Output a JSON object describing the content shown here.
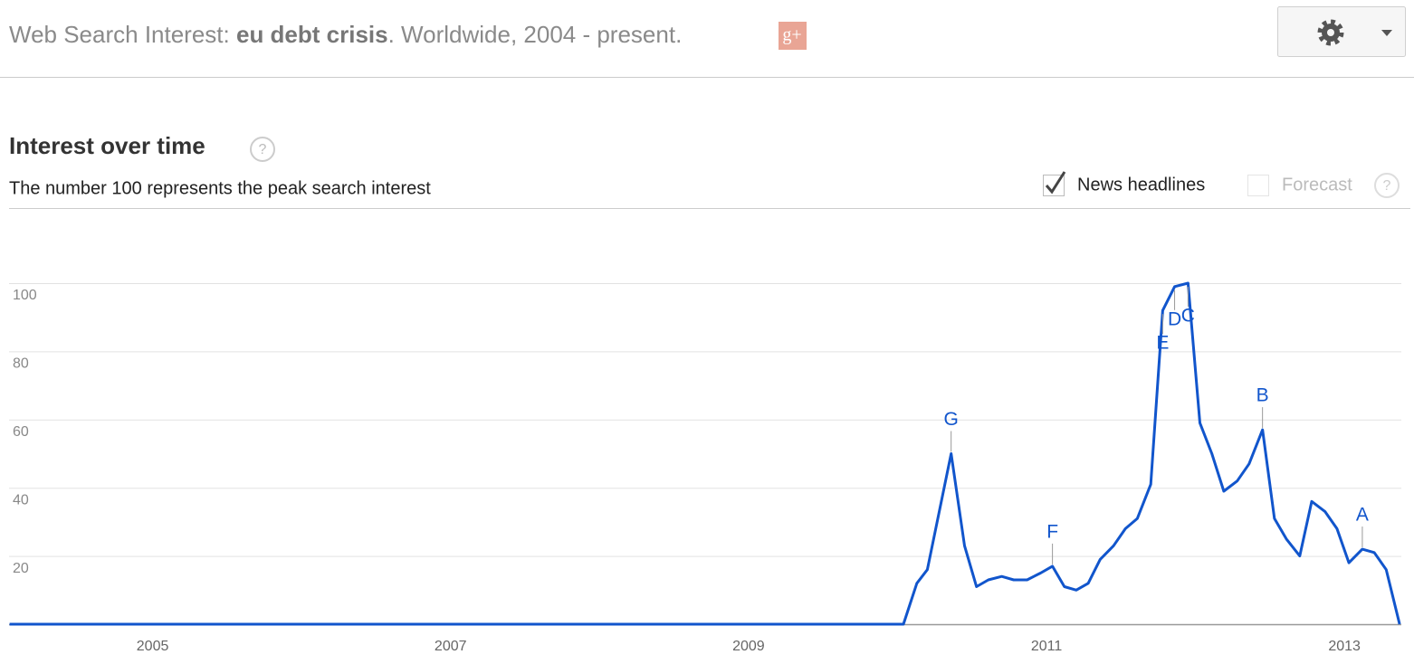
{
  "header": {
    "prefix": "Web Search Interest: ",
    "term": "eu debt crisis",
    "suffix": ". Worldwide, 2004 - present.",
    "share_icon": "g+"
  },
  "section": {
    "title": "Interest over time",
    "subtitle": "The number 100 represents the peak search interest",
    "help": "?",
    "options": [
      {
        "label": "News headlines",
        "checked": true
      },
      {
        "label": "Forecast",
        "checked": false
      }
    ]
  },
  "chart_data": {
    "type": "line",
    "x": [
      2004.04,
      2010.04,
      2010.13,
      2010.2,
      2010.36,
      2010.45,
      2010.53,
      2010.61,
      2010.7,
      2010.78,
      2010.87,
      2010.96,
      2011.04,
      2011.12,
      2011.2,
      2011.28,
      2011.36,
      2011.45,
      2011.53,
      2011.61,
      2011.7,
      2011.78,
      2011.86,
      2011.95,
      2012.03,
      2012.11,
      2012.19,
      2012.28,
      2012.36,
      2012.45,
      2012.53,
      2012.61,
      2012.7,
      2012.78,
      2012.87,
      2012.95,
      2013.03,
      2013.12,
      2013.2,
      2013.28,
      2013.37
    ],
    "series": [
      {
        "color": "#1155cc",
        "values": [
          0,
          0,
          12,
          16,
          50,
          23,
          11,
          13,
          14,
          13,
          13,
          15,
          17,
          11,
          10,
          12,
          19,
          23,
          28,
          31,
          41,
          92,
          99,
          100,
          59,
          50,
          39,
          42,
          47,
          57,
          31,
          25,
          20,
          36,
          33,
          28,
          18,
          22,
          21,
          16,
          0
        ]
      }
    ],
    "xlim": [
      2004,
      2013.4
    ],
    "xticks": [
      2005,
      2007,
      2009,
      2011,
      2013
    ],
    "ylim": [
      0,
      100
    ],
    "yticks": [
      20,
      40,
      60,
      80,
      100
    ],
    "grid": true,
    "annotations": [
      {
        "text": "A",
        "x": 2013.12
      },
      {
        "text": "B",
        "x": 2012.45
      },
      {
        "text": "C",
        "x": 2011.95
      },
      {
        "text": "D",
        "x": 2011.86
      },
      {
        "text": "E",
        "x": 2011.78
      },
      {
        "text": "F",
        "x": 2011.04
      },
      {
        "text": "G",
        "x": 2010.36
      }
    ]
  }
}
